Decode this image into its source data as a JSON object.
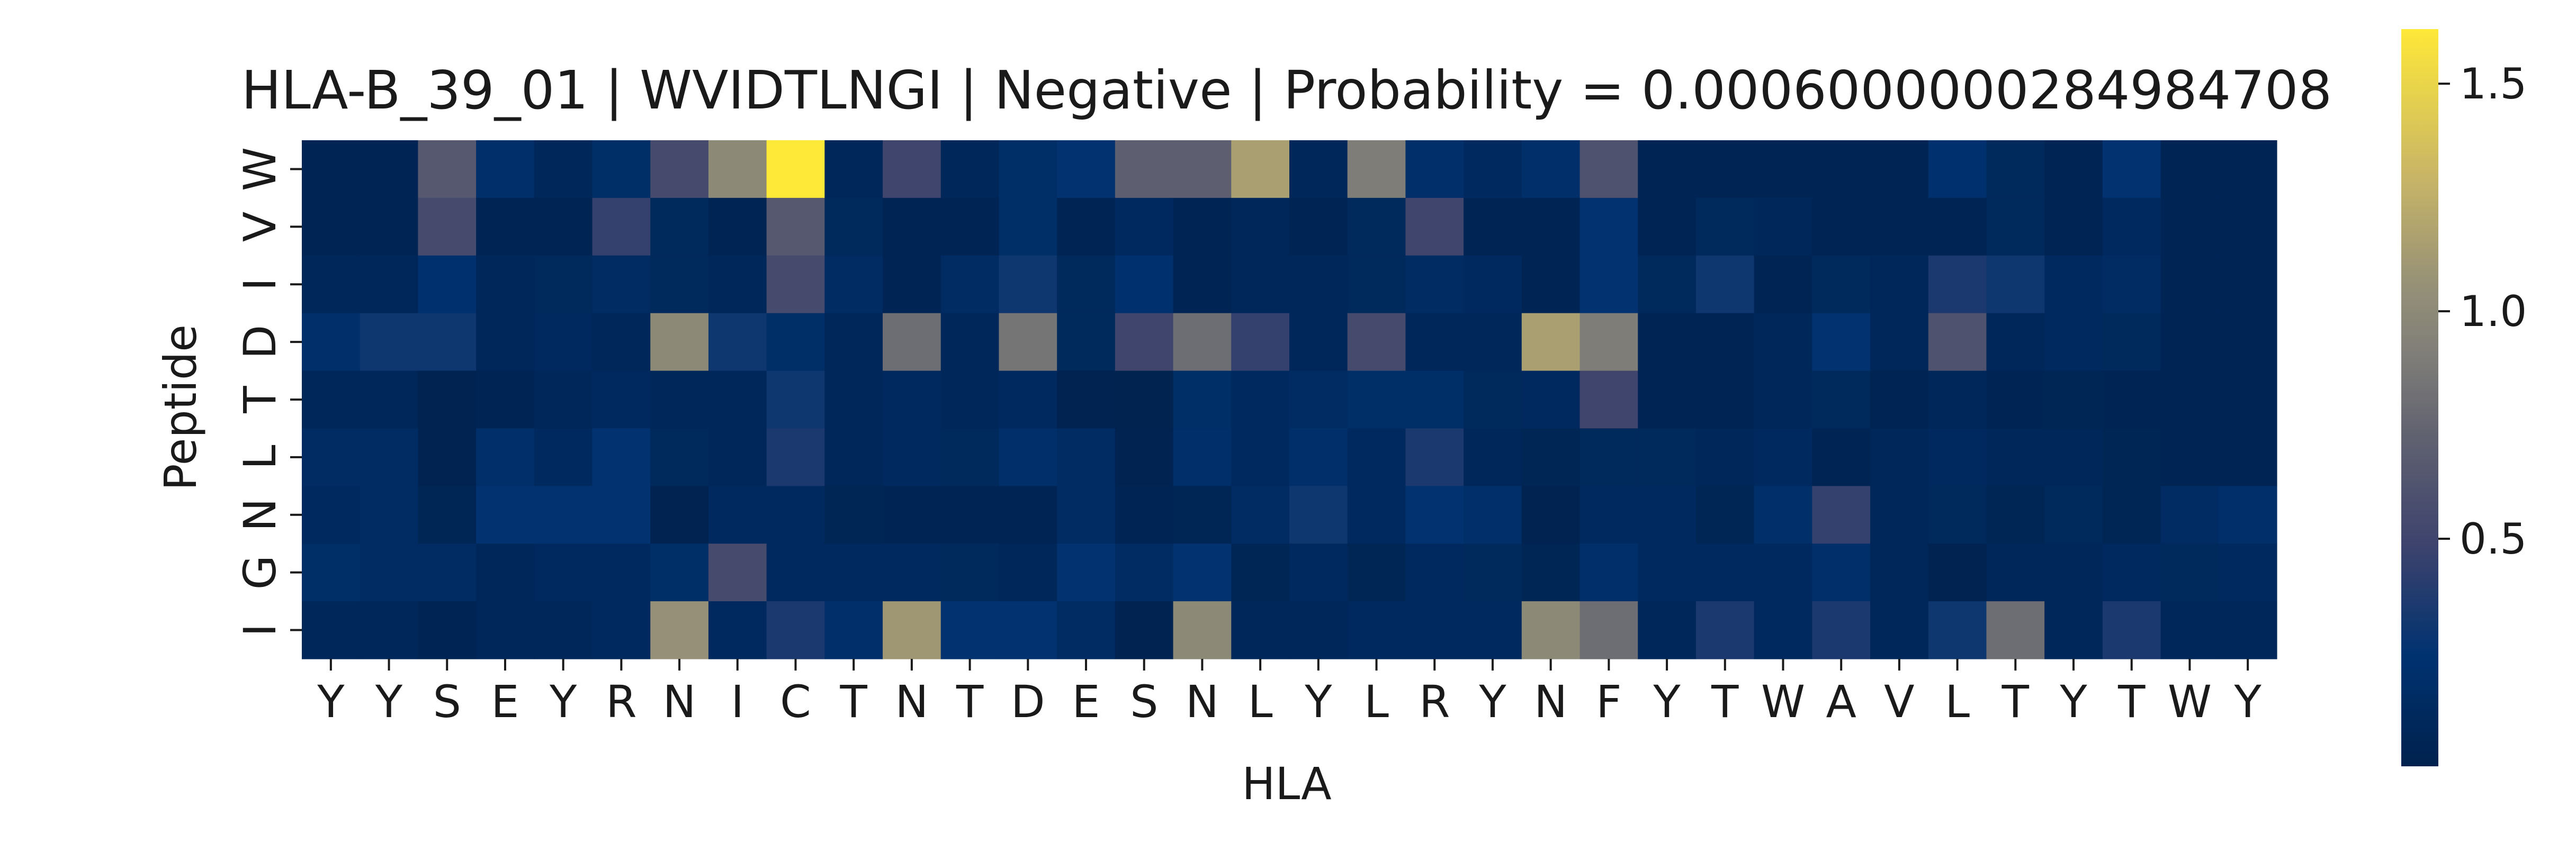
{
  "chart_data": {
    "type": "heatmap",
    "title": "HLA-B_39_01 | WVIDTLNGI | Negative | Probability = 0.0006000000284984708",
    "xlabel": "HLA",
    "ylabel": "Peptide",
    "x_categories": [
      "Y",
      "Y",
      "S",
      "E",
      "Y",
      "R",
      "N",
      "I",
      "C",
      "T",
      "N",
      "T",
      "D",
      "E",
      "S",
      "N",
      "L",
      "Y",
      "L",
      "R",
      "Y",
      "N",
      "F",
      "Y",
      "T",
      "W",
      "A",
      "V",
      "L",
      "T",
      "Y",
      "T",
      "W",
      "Y"
    ],
    "y_categories": [
      "W",
      "V",
      "I",
      "D",
      "T",
      "L",
      "N",
      "G",
      "I"
    ],
    "colormap": "cividis",
    "vmin": 0.0,
    "vmax": 1.62,
    "colorbar_ticks": [
      0.5,
      1.0,
      1.5
    ],
    "colorbar_tick_labels": [
      "0.5",
      "1.0",
      "1.5"
    ],
    "values": [
      [
        0.05,
        0.05,
        0.65,
        0.2,
        0.08,
        0.18,
        0.55,
        1.0,
        1.62,
        0.08,
        0.5,
        0.08,
        0.18,
        0.25,
        0.7,
        0.7,
        1.15,
        0.08,
        0.9,
        0.2,
        0.12,
        0.2,
        0.6,
        0.05,
        0.05,
        0.04,
        0.05,
        0.04,
        0.22,
        0.1,
        0.04,
        0.25,
        0.05,
        0.05
      ],
      [
        0.05,
        0.05,
        0.55,
        0.05,
        0.05,
        0.45,
        0.1,
        0.05,
        0.65,
        0.1,
        0.05,
        0.05,
        0.18,
        0.04,
        0.12,
        0.05,
        0.08,
        0.05,
        0.1,
        0.5,
        0.05,
        0.05,
        0.25,
        0.05,
        0.1,
        0.08,
        0.05,
        0.05,
        0.05,
        0.1,
        0.05,
        0.12,
        0.05,
        0.05
      ],
      [
        0.08,
        0.08,
        0.22,
        0.08,
        0.1,
        0.15,
        0.1,
        0.08,
        0.55,
        0.15,
        0.05,
        0.15,
        0.3,
        0.1,
        0.22,
        0.04,
        0.08,
        0.08,
        0.1,
        0.15,
        0.12,
        0.05,
        0.25,
        0.1,
        0.3,
        0.05,
        0.1,
        0.08,
        0.35,
        0.3,
        0.12,
        0.15,
        0.05,
        0.05
      ],
      [
        0.2,
        0.3,
        0.3,
        0.08,
        0.12,
        0.08,
        1.0,
        0.3,
        0.18,
        0.08,
        0.8,
        0.08,
        0.85,
        0.1,
        0.5,
        0.8,
        0.45,
        0.08,
        0.55,
        0.08,
        0.08,
        1.15,
        0.9,
        0.05,
        0.05,
        0.08,
        0.25,
        0.08,
        0.6,
        0.08,
        0.12,
        0.1,
        0.05,
        0.05
      ],
      [
        0.08,
        0.08,
        0.02,
        0.05,
        0.08,
        0.12,
        0.08,
        0.08,
        0.3,
        0.08,
        0.12,
        0.08,
        0.12,
        0.02,
        0.01,
        0.18,
        0.12,
        0.15,
        0.18,
        0.18,
        0.1,
        0.12,
        0.5,
        0.05,
        0.05,
        0.08,
        0.1,
        0.04,
        0.08,
        0.05,
        0.06,
        0.05,
        0.05,
        0.05
      ],
      [
        0.15,
        0.15,
        0.02,
        0.2,
        0.12,
        0.25,
        0.1,
        0.08,
        0.35,
        0.08,
        0.12,
        0.1,
        0.2,
        0.15,
        0.02,
        0.2,
        0.12,
        0.2,
        0.12,
        0.35,
        0.08,
        0.06,
        0.1,
        0.1,
        0.08,
        0.12,
        0.05,
        0.08,
        0.12,
        0.08,
        0.08,
        0.06,
        0.05,
        0.05
      ],
      [
        0.12,
        0.15,
        0.06,
        0.25,
        0.25,
        0.25,
        0.02,
        0.12,
        0.12,
        0.06,
        0.04,
        0.05,
        0.04,
        0.15,
        0.04,
        0.06,
        0.15,
        0.3,
        0.12,
        0.25,
        0.2,
        0.02,
        0.12,
        0.12,
        0.06,
        0.2,
        0.45,
        0.08,
        0.1,
        0.06,
        0.1,
        0.06,
        0.15,
        0.2
      ],
      [
        0.18,
        0.15,
        0.15,
        0.08,
        0.12,
        0.12,
        0.18,
        0.55,
        0.12,
        0.12,
        0.12,
        0.1,
        0.08,
        0.25,
        0.15,
        0.25,
        0.06,
        0.12,
        0.06,
        0.12,
        0.1,
        0.06,
        0.2,
        0.12,
        0.12,
        0.12,
        0.2,
        0.08,
        0.02,
        0.08,
        0.08,
        0.12,
        0.1,
        0.12
      ],
      [
        0.08,
        0.08,
        0.04,
        0.08,
        0.08,
        0.12,
        1.05,
        0.12,
        0.35,
        0.2,
        1.1,
        0.25,
        0.25,
        0.15,
        0.02,
        1.0,
        0.08,
        0.08,
        0.12,
        0.12,
        0.12,
        1.0,
        0.8,
        0.08,
        0.35,
        0.12,
        0.35,
        0.08,
        0.3,
        0.8,
        0.08,
        0.35,
        0.08,
        0.08
      ]
    ]
  }
}
